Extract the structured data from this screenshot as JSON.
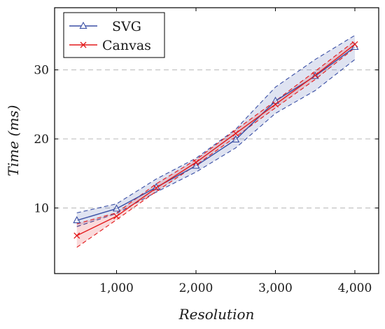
{
  "chart_data": {
    "type": "line",
    "title": "",
    "xlabel": "Resolution",
    "ylabel": "Time (ms)",
    "xlim": [
      220,
      4300
    ],
    "ylim": [
      0.5,
      39
    ],
    "x_ticks": [
      1000,
      2000,
      3000,
      4000
    ],
    "x_tick_labels": [
      "1,000",
      "2,000",
      "3,000",
      "4,000"
    ],
    "y_ticks": [
      10,
      20,
      30
    ],
    "y_tick_labels": [
      "10",
      "20",
      "30"
    ],
    "grid": "horizontal dashed",
    "legend_position": "top-left",
    "x": [
      500,
      1000,
      1500,
      2000,
      2500,
      3000,
      3500,
      4000
    ],
    "series": [
      {
        "name": "SVG",
        "color": "#3a4fa5",
        "marker": "triangle",
        "values": [
          8.2,
          9.9,
          13.0,
          16.1,
          19.9,
          25.5,
          29.1,
          33.3
        ],
        "upper": [
          9.3,
          10.6,
          14.2,
          17.2,
          21.4,
          27.5,
          31.5,
          35.0
        ],
        "lower": [
          7.3,
          9.2,
          12.3,
          15.2,
          18.7,
          23.7,
          27.0,
          31.5
        ]
      },
      {
        "name": "Canvas",
        "color": "#e31a1c",
        "marker": "cross",
        "values": [
          6.0,
          8.8,
          12.9,
          16.6,
          20.8,
          25.0,
          29.2,
          33.7
        ],
        "upper": [
          7.7,
          9.3,
          13.5,
          17.0,
          21.3,
          25.5,
          29.8,
          34.2
        ],
        "lower": [
          4.3,
          8.3,
          12.4,
          16.2,
          20.3,
          24.5,
          28.6,
          33.2
        ]
      }
    ]
  }
}
